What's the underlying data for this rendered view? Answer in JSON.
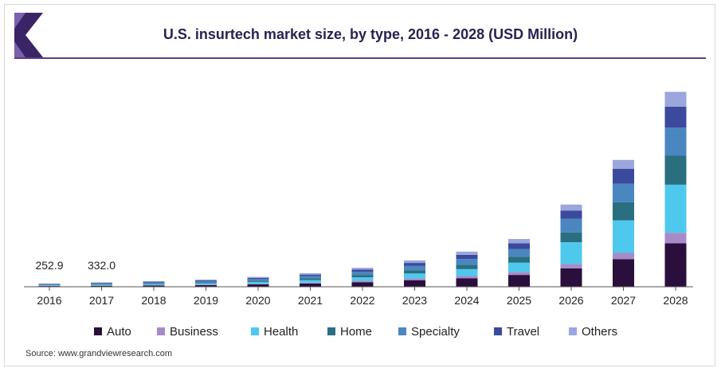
{
  "title": "U.S. insurtech market size, by type, 2016 - 2028 (USD Million)",
  "source": "Source: www.grandviewresearch.com",
  "colors": {
    "title": "#2b2150",
    "rule": "#5b3e86",
    "logo_dark": "#3a2466",
    "logo_light": "#7b5fb0"
  },
  "chart_data": {
    "type": "bar",
    "stacked": true,
    "categories": [
      "2016",
      "2017",
      "2018",
      "2019",
      "2020",
      "2021",
      "2022",
      "2023",
      "2024",
      "2025",
      "2026",
      "2027",
      "2028"
    ],
    "ylim": [
      0,
      15000
    ],
    "grid": false,
    "legend_position": "bottom",
    "annotations": [
      {
        "category": "2016",
        "text": "252.9"
      },
      {
        "category": "2017",
        "text": "332.0"
      }
    ],
    "series": [
      {
        "name": "Auto",
        "color": "#2a0f3d",
        "values": [
          60,
          80,
          100,
          130,
          180,
          250,
          350,
          500,
          650,
          900,
          1400,
          2100,
          3300
        ]
      },
      {
        "name": "Business",
        "color": "#a78bc9",
        "values": [
          20,
          25,
          30,
          40,
          50,
          70,
          100,
          130,
          170,
          230,
          330,
          470,
          800
        ]
      },
      {
        "name": "Health",
        "color": "#4fc8ee",
        "values": [
          45,
          60,
          80,
          100,
          140,
          190,
          270,
          380,
          520,
          700,
          1650,
          2470,
          3650
        ]
      },
      {
        "name": "Home",
        "color": "#2a6f80",
        "values": [
          30,
          40,
          55,
          70,
          95,
          130,
          180,
          250,
          340,
          460,
          750,
          1380,
          2200
        ]
      },
      {
        "name": "Specialty",
        "color": "#4a86c0",
        "values": [
          40,
          55,
          70,
          90,
          120,
          165,
          230,
          320,
          430,
          580,
          1030,
          1400,
          2130
        ]
      },
      {
        "name": "Travel",
        "color": "#3b4a9c",
        "values": [
          30,
          40,
          50,
          65,
          90,
          120,
          170,
          230,
          320,
          430,
          630,
          1130,
          1600
        ]
      },
      {
        "name": "Others",
        "color": "#9aa6dc",
        "values": [
          28,
          32,
          40,
          55,
          75,
          105,
          140,
          190,
          240,
          330,
          450,
          680,
          1120
        ]
      }
    ]
  }
}
